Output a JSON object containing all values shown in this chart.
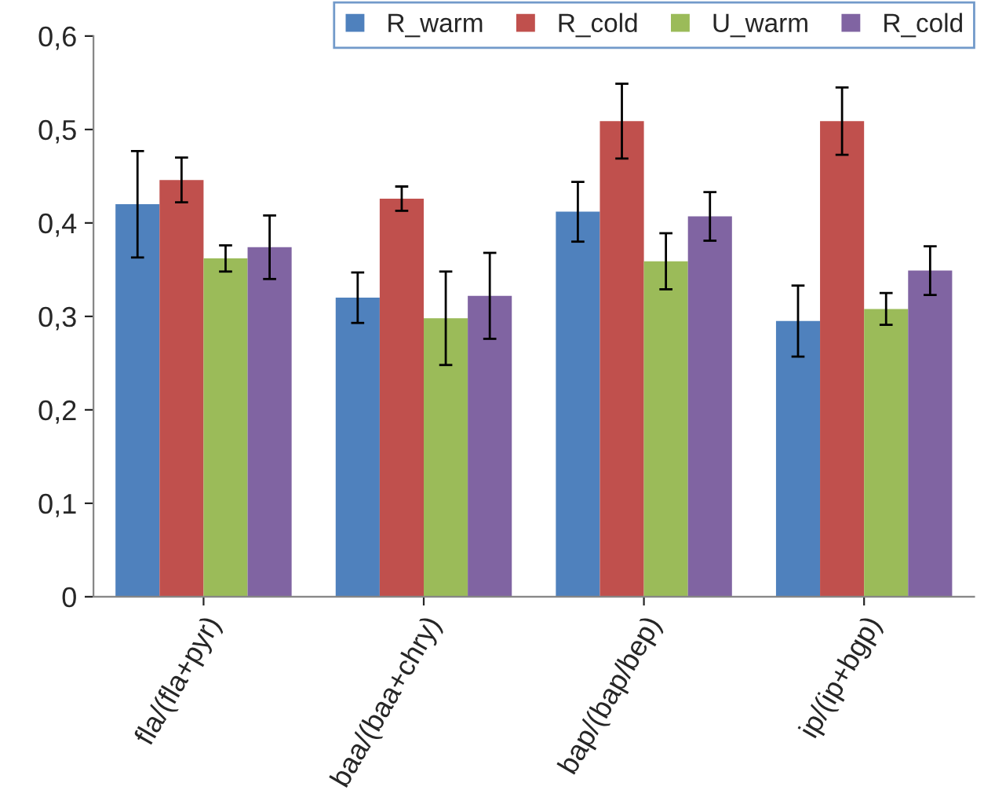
{
  "chart_data": {
    "type": "bar",
    "categories": [
      "fla/(fla+pyr)",
      "baa/(baa+chry)",
      "bap/(bap/bep)",
      "ip/(ip+bgp)"
    ],
    "series": [
      {
        "name": "R_warm",
        "color": "#4f81bd",
        "values": [
          0.42,
          0.32,
          0.412,
          0.295
        ],
        "errors": [
          0.057,
          0.027,
          0.032,
          0.038
        ]
      },
      {
        "name": "R_cold",
        "color": "#c0504d",
        "values": [
          0.446,
          0.426,
          0.509,
          0.509
        ],
        "errors": [
          0.024,
          0.013,
          0.04,
          0.036
        ]
      },
      {
        "name": "U_warm",
        "color": "#9bbb59",
        "values": [
          0.362,
          0.298,
          0.359,
          0.308
        ],
        "errors": [
          0.014,
          0.05,
          0.03,
          0.017
        ]
      },
      {
        "name": "R_cold",
        "color": "#8064a2",
        "values": [
          0.374,
          0.322,
          0.407,
          0.349
        ],
        "errors": [
          0.034,
          0.046,
          0.026,
          0.026
        ]
      }
    ],
    "ylim": [
      0,
      0.6
    ],
    "yticks": [
      {
        "value": 0,
        "label": "0"
      },
      {
        "value": 0.1,
        "label": "0,1"
      },
      {
        "value": 0.2,
        "label": "0,2"
      },
      {
        "value": 0.3,
        "label": "0,3"
      },
      {
        "value": 0.4,
        "label": "0,4"
      },
      {
        "value": 0.5,
        "label": "0,5"
      },
      {
        "value": 0.6,
        "label": "0,6"
      }
    ],
    "grid": false,
    "legend": "top right"
  }
}
